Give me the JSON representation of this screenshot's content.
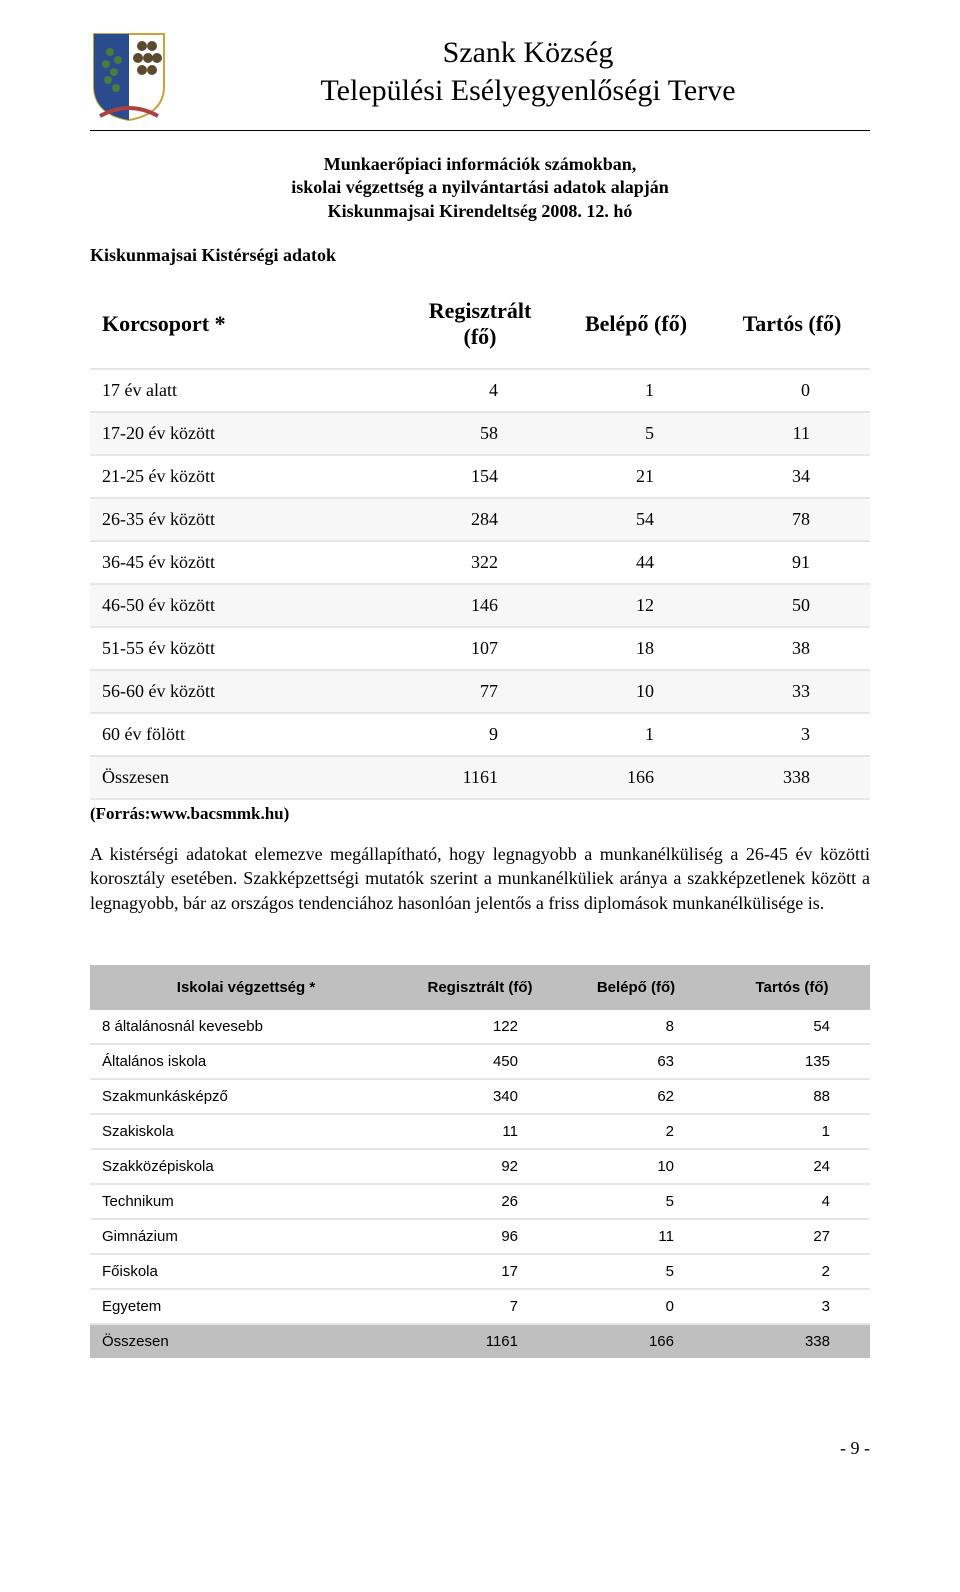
{
  "header": {
    "title_line1": "Szank Község",
    "title_line2": "Települési Esélyegyenlőségi Terve"
  },
  "subtitle": {
    "line1": "Munkaerőpiaci információk számokban,",
    "line2": "iskolai végzettség a nyilvántartási adatok alapján",
    "line3": "Kiskunmajsai Kirendeltség 2008. 12. hó"
  },
  "left_label": "Kiskunmajsai Kistérségi adatok",
  "table1": {
    "head": {
      "c1": "Korcsoport *",
      "c2": "Regisztrált (fő)",
      "c3": "Belépő (fő)",
      "c4": "Tartós (fő)"
    },
    "rows": [
      {
        "c1": "17 év alatt",
        "c2": "4",
        "c3": "1",
        "c4": "0"
      },
      {
        "c1": "17-20 év között",
        "c2": "58",
        "c3": "5",
        "c4": "11"
      },
      {
        "c1": "21-25 év között",
        "c2": "154",
        "c3": "21",
        "c4": "34"
      },
      {
        "c1": "26-35 év között",
        "c2": "284",
        "c3": "54",
        "c4": "78"
      },
      {
        "c1": "36-45 év között",
        "c2": "322",
        "c3": "44",
        "c4": "91"
      },
      {
        "c1": "46-50 év között",
        "c2": "146",
        "c3": "12",
        "c4": "50"
      },
      {
        "c1": "51-55 év között",
        "c2": "107",
        "c3": "18",
        "c4": "38"
      },
      {
        "c1": "56-60 év között",
        "c2": "77",
        "c3": "10",
        "c4": "33"
      },
      {
        "c1": "60 év fölött",
        "c2": "9",
        "c3": "1",
        "c4": "3"
      },
      {
        "c1": "Összesen",
        "c2": "1161",
        "c3": "166",
        "c4": "338"
      }
    ]
  },
  "source_line": "(Forrás:www.bacsmmk.hu)",
  "body_text": "A kistérségi adatokat elemezve megállapítható, hogy legnagyobb a munkanélküliség a 26-45 év közötti korosztály esetében. Szakképzettségi mutatók szerint a munkanélküliek aránya a szakképzetlenek között a legnagyobb, bár az országos tendenciához hasonlóan jelentős a friss diplomások munkanélkülisége is.",
  "table2": {
    "head": {
      "c1": "Iskolai végzettség *",
      "c2": "Regisztrált (fő)",
      "c3": "Belépő (fő)",
      "c4": "Tartós (fő)"
    },
    "rows": [
      {
        "c1": "8 általánosnál kevesebb",
        "c2": "122",
        "c3": "8",
        "c4": "54"
      },
      {
        "c1": "Általános iskola",
        "c2": "450",
        "c3": "63",
        "c4": "135"
      },
      {
        "c1": "Szakmunkásképző",
        "c2": "340",
        "c3": "62",
        "c4": "88"
      },
      {
        "c1": "Szakiskola",
        "c2": "11",
        "c3": "2",
        "c4": "1"
      },
      {
        "c1": "Szakközépiskola",
        "c2": "92",
        "c3": "10",
        "c4": "24"
      },
      {
        "c1": "Technikum",
        "c2": "26",
        "c3": "5",
        "c4": "4"
      },
      {
        "c1": "Gimnázium",
        "c2": "96",
        "c3": "11",
        "c4": "27"
      },
      {
        "c1": "Főiskola",
        "c2": "17",
        "c3": "5",
        "c4": "2"
      },
      {
        "c1": "Egyetem",
        "c2": "7",
        "c3": "0",
        "c4": "3"
      }
    ],
    "total": {
      "c1": "Összesen",
      "c2": "1161",
      "c3": "166",
      "c4": "338"
    }
  },
  "page_number": "- 9 -",
  "colors": {
    "row_border": "#e6e6e6",
    "alt_row": "#f7f7f7",
    "grey_header": "#bfbfbf",
    "text": "#000000",
    "bg": "#ffffff"
  }
}
